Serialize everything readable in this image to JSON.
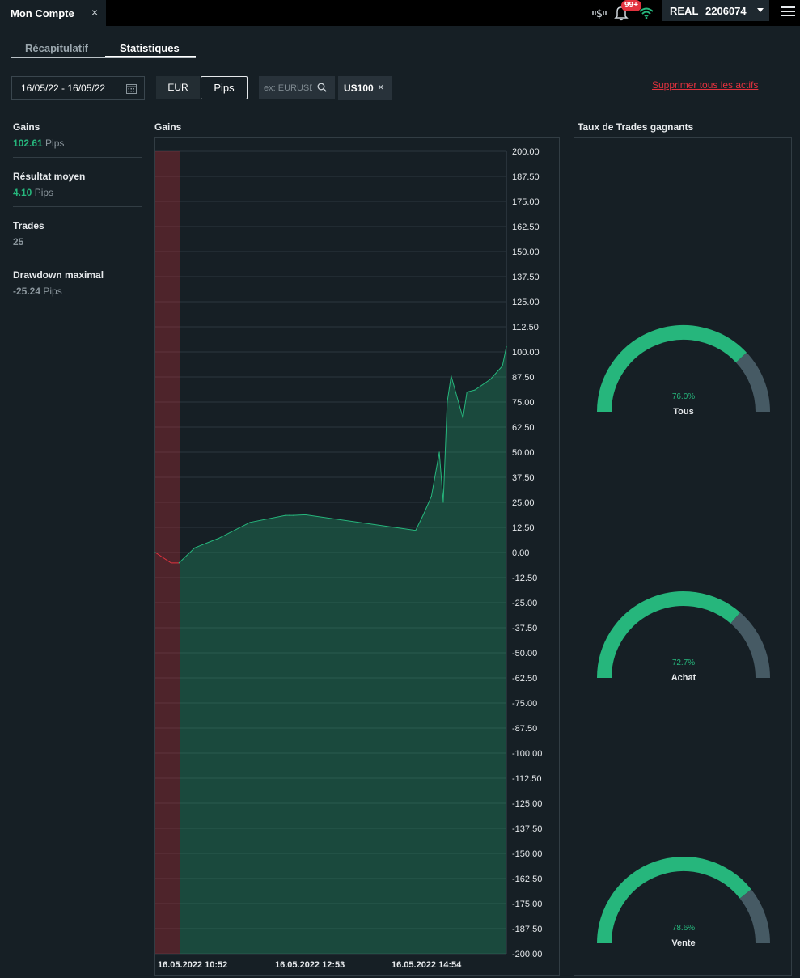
{
  "window": {
    "tab_title": "Mon Compte",
    "close_glyph": "×"
  },
  "topbar": {
    "notifications_badge": "99+",
    "account_type": "REAL",
    "account_number": "2206074",
    "icons": [
      "dollar-exchange-icon",
      "bell-icon",
      "wifi-icon",
      "chevron-down-icon",
      "hamburger-menu-icon"
    ]
  },
  "tabs": [
    {
      "label": "Récapitulatif",
      "active": false
    },
    {
      "label": "Statistiques",
      "active": true
    }
  ],
  "filters": {
    "date_range": "16/05/22 - 16/05/22",
    "currency_options": [
      "EUR",
      "Pips"
    ],
    "selected_currency": "Pips",
    "asset_search_placeholder": "ex: EURUSD",
    "selected_asset": "US100",
    "remove_all_label": "Supprimer tous les actifs"
  },
  "stats": [
    {
      "label": "Gains",
      "value": "102.61",
      "unit": "Pips",
      "color": "green"
    },
    {
      "label": "Résultat moyen",
      "value": "4.10",
      "unit": "Pips",
      "color": "green"
    },
    {
      "label": "Trades",
      "value": "25",
      "unit": "",
      "color": "grey"
    },
    {
      "label": "Drawdown maximal",
      "value": "-25.24",
      "unit": "Pips",
      "color": "grey"
    }
  ],
  "colors": {
    "positive": "#26b67c",
    "negative": "#e2323e",
    "gauge_rest": "#465a64",
    "background": "#161f25"
  },
  "chart_data": {
    "type": "area",
    "title": "Gains",
    "ylim": [
      -200,
      200
    ],
    "y_ticks": [
      "200.00",
      "187.50",
      "175.00",
      "162.50",
      "150.00",
      "137.50",
      "125.00",
      "112.50",
      "100.00",
      "87.50",
      "75.00",
      "62.50",
      "50.00",
      "37.50",
      "25.00",
      "12.50",
      "0.00",
      "-12.50",
      "-25.00",
      "-37.50",
      "-50.00",
      "-62.50",
      "-75.00",
      "-87.50",
      "-100.00",
      "-112.50",
      "-125.00",
      "-137.50",
      "-150.00",
      "-162.50",
      "-175.00",
      "-187.50",
      "-200.00"
    ],
    "x_tick_labels": [
      "16.05.2022 10:52",
      "16.05.2022 12:53",
      "16.05.2022 14:54"
    ],
    "grid": true,
    "series": [
      {
        "x_index": [
          0,
          4,
          6,
          10,
          12,
          16,
          24,
          33,
          34,
          35,
          38,
          66,
          68,
          70,
          72,
          73,
          74,
          75,
          78,
          79,
          81,
          85,
          88,
          89
        ],
        "values": [
          0,
          -5.2,
          -5.2,
          2.3,
          3.9,
          7,
          15,
          18.5,
          18.5,
          18.5,
          18.8,
          11,
          19,
          28,
          50,
          25,
          75,
          88,
          67,
          80,
          81,
          86.4,
          93,
          102.61
        ]
      }
    ]
  },
  "win_rate": {
    "title": "Taux de Trades gagnants",
    "gauges": [
      {
        "label": "Tous",
        "value": 76.0,
        "display": "76.0%"
      },
      {
        "label": "Achat",
        "value": 72.7,
        "display": "72.7%"
      },
      {
        "label": "Vente",
        "value": 78.6,
        "display": "78.6%"
      }
    ]
  }
}
